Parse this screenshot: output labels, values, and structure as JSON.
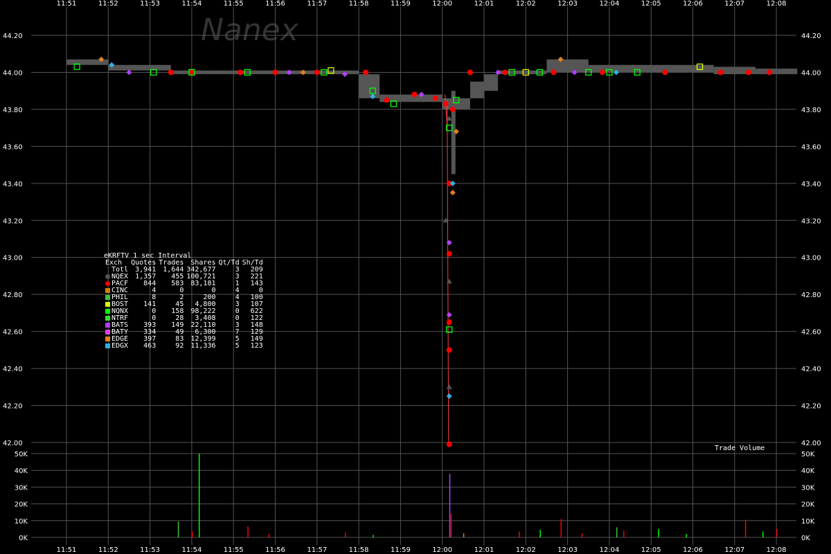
{
  "watermark": "Nanex",
  "stats": {
    "title": "eKRFTV 1 sec Interval",
    "headers": [
      "Exch",
      "Quotes",
      "Trades",
      "Shares",
      "Qt/Td",
      "Sh/Td"
    ],
    "rows": [
      {
        "exch": "Totl",
        "quotes": "3,941",
        "trades": "1,644",
        "shares": "342,677",
        "qt_td": "3",
        "sh_td": "209",
        "color": ""
      },
      {
        "exch": "NQEX",
        "quotes": "1,357",
        "trades": "455",
        "shares": "100,721",
        "qt_td": "3",
        "sh_td": "221",
        "color": "#555555"
      },
      {
        "exch": "PACF",
        "quotes": "844",
        "trades": "583",
        "shares": "83,181",
        "qt_td": "1",
        "sh_td": "143",
        "color": "#ff0000"
      },
      {
        "exch": "CINC",
        "quotes": "4",
        "trades": "0",
        "shares": "0",
        "qt_td": "4",
        "sh_td": "0",
        "color": "#d08000"
      },
      {
        "exch": "PHIL",
        "quotes": "8",
        "trades": "2",
        "shares": "200",
        "qt_td": "4",
        "sh_td": "100",
        "color": "#40c040"
      },
      {
        "exch": "BOST",
        "quotes": "141",
        "trades": "45",
        "shares": "4,800",
        "qt_td": "3",
        "sh_td": "107",
        "color": "#d0ff00"
      },
      {
        "exch": "NQNX",
        "quotes": "0",
        "trades": "158",
        "shares": "98,222",
        "qt_td": "0",
        "sh_td": "622",
        "color": "#00ff00"
      },
      {
        "exch": "NTRF",
        "quotes": "0",
        "trades": "28",
        "shares": "3,408",
        "qt_td": "0",
        "sh_td": "122",
        "color": "#30e030"
      },
      {
        "exch": "BATS",
        "quotes": "393",
        "trades": "149",
        "shares": "22,110",
        "qt_td": "3",
        "sh_td": "148",
        "color": "#b040ff"
      },
      {
        "exch": "BATY",
        "quotes": "334",
        "trades": "49",
        "shares": "6,300",
        "qt_td": "7",
        "sh_td": "129",
        "color": "#e040e0"
      },
      {
        "exch": "EDGE",
        "quotes": "397",
        "trades": "83",
        "shares": "12,399",
        "qt_td": "5",
        "sh_td": "149",
        "color": "#e08020"
      },
      {
        "exch": "EDGX",
        "quotes": "463",
        "trades": "92",
        "shares": "11,336",
        "qt_td": "5",
        "sh_td": "123",
        "color": "#30b0e0"
      }
    ]
  },
  "chart_data": [
    {
      "type": "scatter",
      "x_ticks": [
        "11:51",
        "11:52",
        "11:53",
        "11:54",
        "11:55",
        "11:56",
        "11:57",
        "11:58",
        "11:59",
        "12:00",
        "12:01",
        "12:02",
        "12:03",
        "12:04",
        "12:05",
        "12:06",
        "12:07",
        "12:08"
      ],
      "y_ticks": [
        "42.00",
        "42.20",
        "42.40",
        "42.60",
        "42.80",
        "43.00",
        "43.20",
        "43.40",
        "43.60",
        "43.80",
        "44.00",
        "44.20"
      ],
      "ylim": [
        42.0,
        44.2
      ],
      "grid": true,
      "series": [
        {
          "name": "PACF",
          "color": "#ff0000",
          "shape": "circle",
          "x": [
            "11:53:30",
            "11:54:00",
            "11:55:10",
            "11:56:00",
            "11:57:00",
            "11:58:10",
            "11:58:40",
            "11:59:20",
            "11:59:50",
            "12:00:05",
            "12:00:10",
            "12:00:10",
            "12:00:10",
            "12:00:10",
            "12:00:10",
            "12:00:15",
            "12:00:40",
            "12:01:30",
            "12:02:40",
            "12:03:50",
            "12:05:20",
            "12:06:40",
            "12:07:20",
            "12:07:50"
          ],
          "y": [
            44.0,
            44.0,
            44.0,
            44.0,
            44.0,
            44.0,
            43.85,
            43.88,
            43.86,
            43.83,
            43.4,
            43.02,
            42.65,
            42.5,
            41.99,
            43.8,
            44.0,
            44.0,
            44.0,
            44.0,
            44.0,
            44.0,
            44.0,
            44.0
          ]
        },
        {
          "name": "NQNX",
          "color": "#00ff00",
          "shape": "square",
          "x": [
            "11:51:15",
            "11:53:05",
            "11:54:00",
            "11:55:20",
            "11:57:10",
            "11:58:20",
            "11:58:50",
            "12:00:10",
            "12:00:10",
            "12:00:20",
            "12:01:40",
            "12:02:20",
            "12:03:30",
            "12:04:00",
            "12:04:40"
          ],
          "y": [
            44.03,
            44.0,
            44.0,
            44.0,
            44.0,
            43.9,
            43.83,
            43.7,
            42.61,
            43.85,
            44.0,
            44.0,
            44.0,
            44.0,
            44.0
          ]
        },
        {
          "name": "BATS",
          "color": "#b040ff",
          "shape": "diamond",
          "x": [
            "11:52:30",
            "11:56:20",
            "11:57:40",
            "11:59:30",
            "12:00:10",
            "12:00:10",
            "12:01:20",
            "12:03:10"
          ],
          "y": [
            44.0,
            44.0,
            43.99,
            43.88,
            43.08,
            42.69,
            44.0,
            44.0
          ]
        },
        {
          "name": "EDGX",
          "color": "#30b0e0",
          "shape": "diamond",
          "x": [
            "11:52:05",
            "11:58:20",
            "12:00:15",
            "12:00:10",
            "12:04:10"
          ],
          "y": [
            44.04,
            43.87,
            43.4,
            42.25,
            44.0
          ]
        },
        {
          "name": "EDGE",
          "color": "#e08020",
          "shape": "diamond",
          "x": [
            "11:51:50",
            "11:56:40",
            "12:00:15",
            "12:00:20",
            "12:02:50"
          ],
          "y": [
            44.07,
            44.0,
            43.35,
            43.68,
            44.07
          ]
        },
        {
          "name": "BOST",
          "color": "#d0ff00",
          "shape": "square",
          "x": [
            "11:57:20",
            "12:02:00",
            "12:06:10"
          ],
          "y": [
            44.01,
            44.0,
            44.03
          ]
        },
        {
          "name": "NQEX",
          "color": "#555555",
          "shape": "triangle",
          "x": [
            "12:00:05",
            "12:00:10",
            "12:00:10",
            "12:00:10"
          ],
          "y": [
            43.2,
            42.87,
            42.3,
            43.75
          ]
        }
      ]
    },
    {
      "type": "bar",
      "title": "Trade Volume",
      "y_ticks": [
        "0K",
        "10K",
        "20K",
        "30K",
        "40K",
        "50K"
      ],
      "ylim": [
        0,
        55000
      ],
      "bars": [
        {
          "x": "11:53:40",
          "value": 9500,
          "color": "#40c040"
        },
        {
          "x": "11:54:10",
          "value": 50000,
          "color": "#00ff00"
        },
        {
          "x": "11:54:00",
          "value": 3500,
          "color": "#ff0000"
        },
        {
          "x": "11:55:20",
          "value": 6500,
          "color": "#ff0000"
        },
        {
          "x": "11:55:50",
          "value": 2000,
          "color": "#ff0000"
        },
        {
          "x": "11:57:40",
          "value": 3000,
          "color": "#ff0000"
        },
        {
          "x": "11:58:20",
          "value": 1500,
          "color": "#00ff00"
        },
        {
          "x": "12:00:10",
          "value": 38000,
          "color": "#b040ff"
        },
        {
          "x": "12:00:12",
          "value": 14000,
          "color": "#ff0000"
        },
        {
          "x": "12:00:30",
          "value": 2500,
          "color": "#e08020"
        },
        {
          "x": "12:01:50",
          "value": 3500,
          "color": "#ff0000"
        },
        {
          "x": "12:02:20",
          "value": 4500,
          "color": "#00ff00"
        },
        {
          "x": "12:02:50",
          "value": 11000,
          "color": "#ff0000"
        },
        {
          "x": "12:03:20",
          "value": 2500,
          "color": "#ff0000"
        },
        {
          "x": "12:04:10",
          "value": 6000,
          "color": "#40c040"
        },
        {
          "x": "12:04:20",
          "value": 4000,
          "color": "#ff0000"
        },
        {
          "x": "12:05:10",
          "value": 5000,
          "color": "#00ff00"
        },
        {
          "x": "12:05:50",
          "value": 2000,
          "color": "#00ff00"
        },
        {
          "x": "12:07:15",
          "value": 10500,
          "color": "#ff0000"
        },
        {
          "x": "12:07:40",
          "value": 3500,
          "color": "#00ff00"
        },
        {
          "x": "12:08:00",
          "value": 5000,
          "color": "#ff0000"
        }
      ]
    }
  ]
}
